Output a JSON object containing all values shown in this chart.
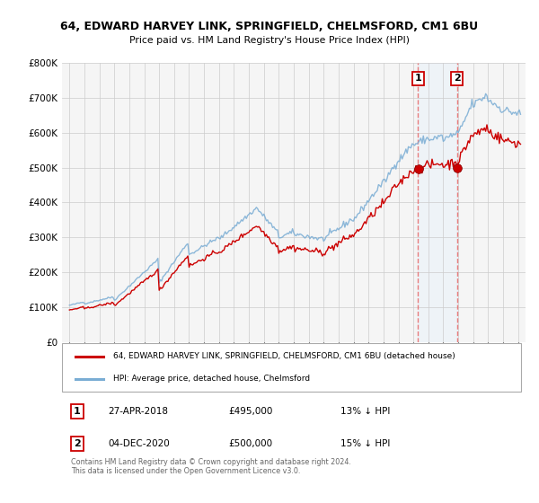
{
  "title": "64, EDWARD HARVEY LINK, SPRINGFIELD, CHELMSFORD, CM1 6BU",
  "subtitle": "Price paid vs. HM Land Registry's House Price Index (HPI)",
  "legend_line1": "64, EDWARD HARVEY LINK, SPRINGFIELD, CHELMSFORD, CM1 6BU (detached house)",
  "legend_line2": "HPI: Average price, detached house, Chelmsford",
  "sale1_date": "27-APR-2018",
  "sale1_price": 495000,
  "sale1_hpi_text": "13% ↓ HPI",
  "sale2_date": "04-DEC-2020",
  "sale2_price": 500000,
  "sale2_hpi_text": "15% ↓ HPI",
  "footer": "Contains HM Land Registry data © Crown copyright and database right 2024.\nThis data is licensed under the Open Government Licence v3.0.",
  "red_color": "#cc0000",
  "blue_color": "#7aadd4",
  "shade_color": "#ddeeff",
  "dashed_color": "#e87070",
  "ylim": [
    0,
    800000
  ],
  "yticks": [
    0,
    100000,
    200000,
    300000,
    400000,
    500000,
    600000,
    700000,
    800000
  ],
  "ytick_labels": [
    "£0",
    "£100K",
    "£200K",
    "£300K",
    "£400K",
    "£500K",
    "£600K",
    "£700K",
    "£800K"
  ],
  "sale1_year": 2018.31,
  "sale2_year": 2020.92
}
